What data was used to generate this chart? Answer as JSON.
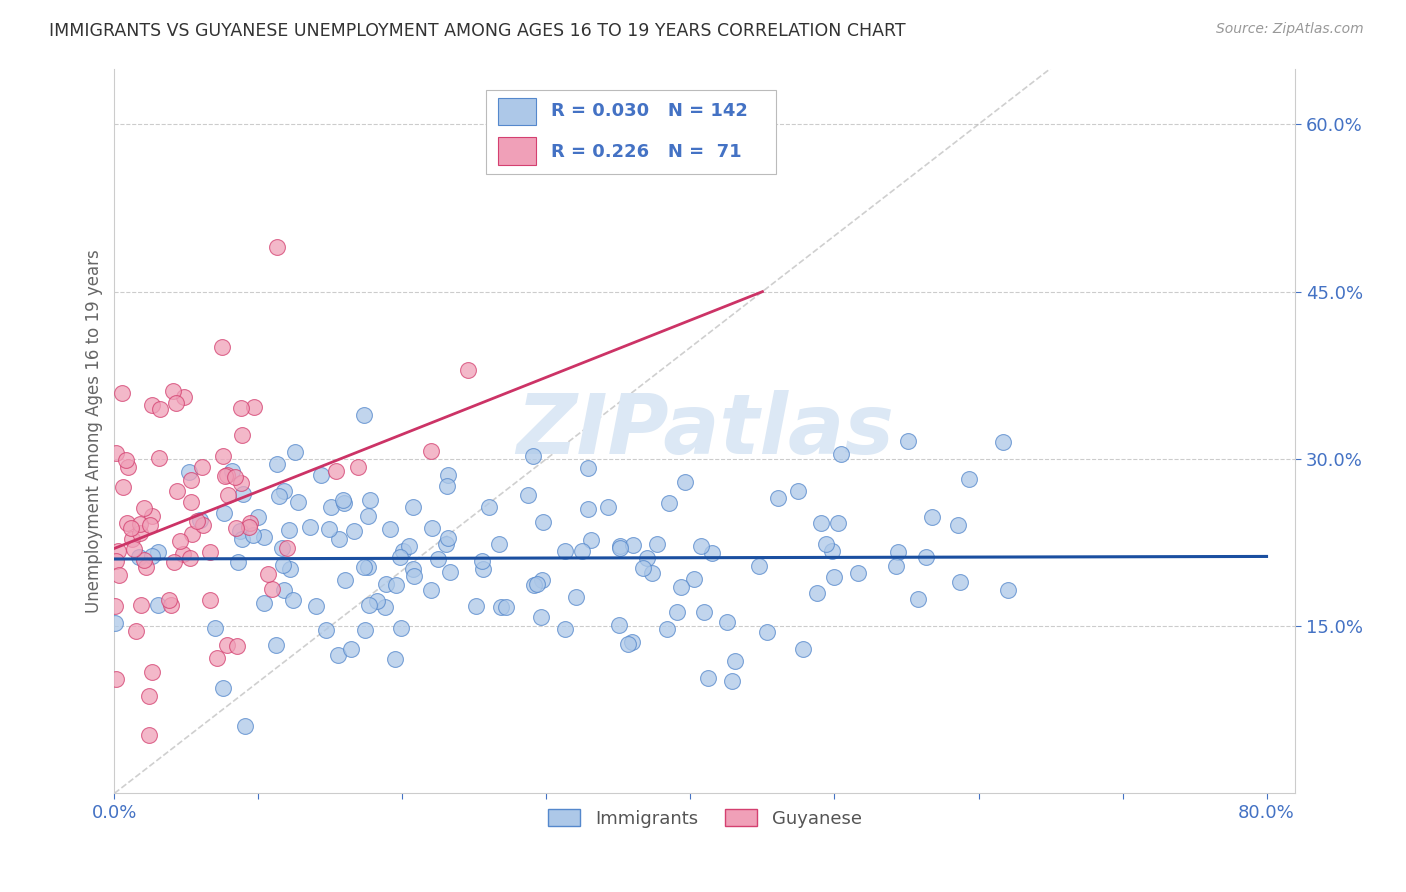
{
  "title": "IMMIGRANTS VS GUYANESE UNEMPLOYMENT AMONG AGES 16 TO 19 YEARS CORRELATION CHART",
  "source": "Source: ZipAtlas.com",
  "ylabel": "Unemployment Among Ages 16 to 19 years",
  "xlim": [
    0.0,
    0.82
  ],
  "ylim": [
    0.0,
    0.65
  ],
  "ytick_positions": [
    0.15,
    0.3,
    0.45,
    0.6
  ],
  "ytick_labels": [
    "15.0%",
    "30.0%",
    "45.0%",
    "60.0%"
  ],
  "legend_R_immigrants": "0.030",
  "legend_N_immigrants": "142",
  "legend_R_guyanese": "0.226",
  "legend_N_guyanese": " 71",
  "color_immigrants_fill": "#adc8e8",
  "color_immigrants_edge": "#5588cc",
  "color_guyanese_fill": "#f0a0b8",
  "color_guyanese_edge": "#d44070",
  "color_immigrants_line": "#1a4fa0",
  "color_guyanese_line": "#cc3366",
  "color_diag_line": "#bbbbbb",
  "grid_color": "#cccccc",
  "axis_color": "#4472c4",
  "background_color": "#ffffff",
  "title_color": "#333333",
  "watermark_color": "#dce8f5",
  "seed": 123
}
